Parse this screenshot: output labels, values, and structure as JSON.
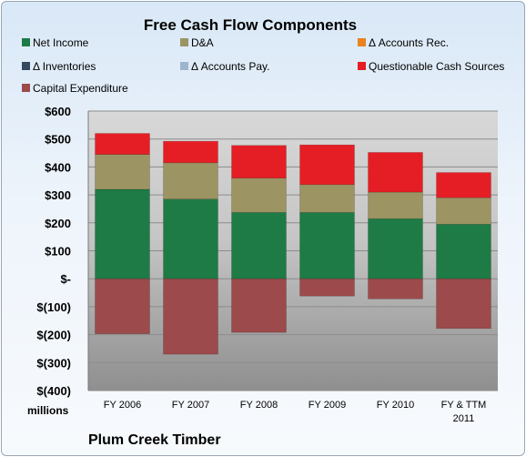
{
  "chart_data": {
    "type": "bar",
    "stacked": true,
    "title": "Free Cash Flow Components",
    "units_label": "millions",
    "caption": "Plum Creek Timber",
    "categories": [
      "FY 2006",
      "FY 2007",
      "FY 2008",
      "FY 2009",
      "FY 2010",
      "FY & TTM 2011"
    ],
    "ylim": [
      -400,
      600
    ],
    "yticks": [
      600,
      500,
      400,
      300,
      200,
      100,
      0,
      -100,
      -200,
      -300,
      -400
    ],
    "ytick_labels": [
      "$600",
      "$500",
      "$400",
      "$300",
      "$200",
      "$100",
      "$-",
      "$(100)",
      "$(200)",
      "$(300)",
      "$(400)"
    ],
    "grid": true,
    "legend_position": "top",
    "series": [
      {
        "name": "Net Income",
        "color": "#1e7b45",
        "values": [
          320,
          285,
          237,
          237,
          215,
          195
        ]
      },
      {
        "name": "D&A",
        "color": "#9c9463",
        "values": [
          125,
          130,
          123,
          100,
          95,
          95
        ]
      },
      {
        "name": "Δ Accounts Rec.",
        "color": "#e9821f",
        "values": [
          0,
          0,
          0,
          0,
          0,
          0
        ]
      },
      {
        "name": "Δ Inventories",
        "color": "#34495e",
        "values": [
          0,
          0,
          0,
          0,
          0,
          0
        ]
      },
      {
        "name": "Δ Accounts Pay.",
        "color": "#9fb4cf",
        "values": [
          0,
          0,
          0,
          0,
          0,
          0
        ]
      },
      {
        "name": "Questionable Cash Sources",
        "color": "#e51e25",
        "values": [
          75,
          77,
          117,
          142,
          142,
          90
        ]
      },
      {
        "name": "Capital Expenditure",
        "color": "#9c4a4b",
        "values": [
          -197,
          -270,
          -192,
          -62,
          -72,
          -178
        ]
      }
    ]
  }
}
